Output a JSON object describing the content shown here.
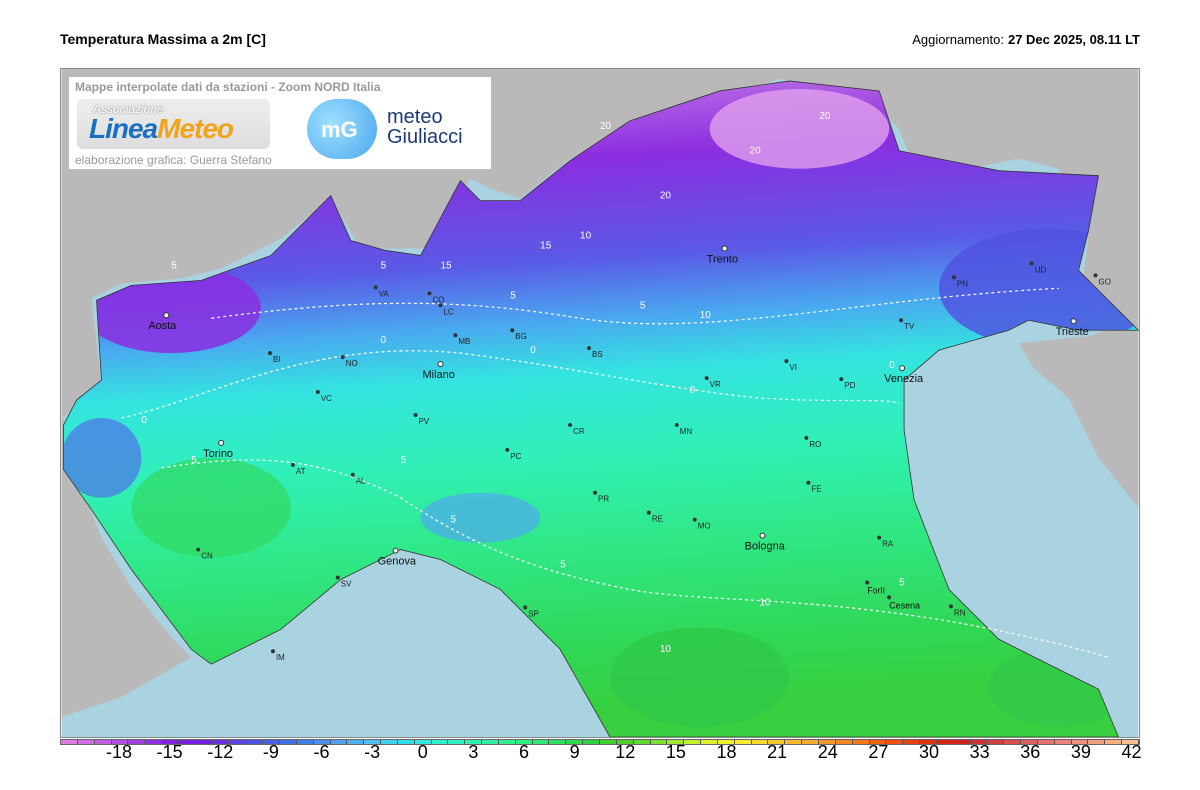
{
  "header": {
    "title": "Temperatura Massima a 2m [C]",
    "update_label": "Aggiornamento:",
    "update_value": "27 Dec 2025, 08.11 LT"
  },
  "credits": {
    "top_text": "Mappe interpolate dati da stazioni - Zoom NORD Italia",
    "logo1_small": "Associazione",
    "logo1_a": "Linea",
    "logo1_b": "Meteo",
    "logo2_mark": "mG",
    "logo2_line1": "meteo",
    "logo2_line2": "Giuliacci",
    "bottom_text": "elaborazione grafica: Guerra Stefano"
  },
  "colors": {
    "sea": "#a9d3e0",
    "foreign_land": "#b9b9b9",
    "scale": [
      "#e07ee0",
      "#d070e0",
      "#c060e0",
      "#b050e0",
      "#a040e0",
      "#9030e0",
      "#8020e0",
      "#7a1ee0",
      "#7020e0",
      "#6a30e0",
      "#6040e0",
      "#5050e0",
      "#4a60e0",
      "#4070e4",
      "#4080e8",
      "#4a90ec",
      "#50a0f0",
      "#50b0f0",
      "#50c0f0",
      "#40d0f0",
      "#30e0e8",
      "#30e8e0",
      "#30f0d0",
      "#30f0c0",
      "#30f0b0",
      "#30f0a0",
      "#30f090",
      "#30f080",
      "#30e870",
      "#30e060",
      "#30d850",
      "#30d040",
      "#40d030",
      "#50d030",
      "#60d830",
      "#80e030",
      "#a0e830",
      "#c0f030",
      "#e0f030",
      "#f0f030",
      "#f8e830",
      "#f8d830",
      "#f8c830",
      "#f8b830",
      "#f8a830",
      "#f89828",
      "#f88820",
      "#f87818",
      "#f06010",
      "#f05010",
      "#e84010",
      "#e03010",
      "#d82010",
      "#d02020",
      "#d03030",
      "#d04040",
      "#d85050",
      "#e06060",
      "#e87070",
      "#f08080",
      "#f09080",
      "#f0a080",
      "#f8b080",
      "#f8c090"
    ]
  },
  "colorbar": {
    "range": [
      -21,
      43
    ],
    "ticks": [
      "-18",
      "-15",
      "-12",
      "-9",
      "-6",
      "-3",
      "0",
      "3",
      "6",
      "9",
      "12",
      "15",
      "18",
      "21",
      "24",
      "27",
      "30",
      "33",
      "36",
      "39",
      "42"
    ]
  },
  "cities": [
    {
      "name": "Aosta",
      "major": true
    },
    {
      "name": "Torino",
      "major": true
    },
    {
      "name": "Milano",
      "major": true
    },
    {
      "name": "Genova",
      "major": true
    },
    {
      "name": "Trento",
      "major": true
    },
    {
      "name": "Venezia",
      "major": true
    },
    {
      "name": "Bologna",
      "major": true
    },
    {
      "name": "Trieste",
      "major": true
    },
    {
      "name": "Forlì",
      "major": false
    },
    {
      "name": "Cesena",
      "major": false
    }
  ],
  "provinces": [
    "VA",
    "CO",
    "LC",
    "MB",
    "BG",
    "BS",
    "NO",
    "BI",
    "VC",
    "AT",
    "AL",
    "CN",
    "SV",
    "IM",
    "PV",
    "PC",
    "CR",
    "MN",
    "VR",
    "VI",
    "TV",
    "PN",
    "UD",
    "GO",
    "PD",
    "RO",
    "FE",
    "RA",
    "RN",
    "MO",
    "RE",
    "PR",
    "SP"
  ],
  "contour_labels": [
    "20",
    "20",
    "20",
    "20",
    "15",
    "15",
    "10",
    "10",
    "5",
    "5",
    "5",
    "5",
    "0",
    "0",
    "0",
    "0",
    "5",
    "5",
    "5",
    "5",
    "10",
    "10",
    "5",
    "0"
  ]
}
